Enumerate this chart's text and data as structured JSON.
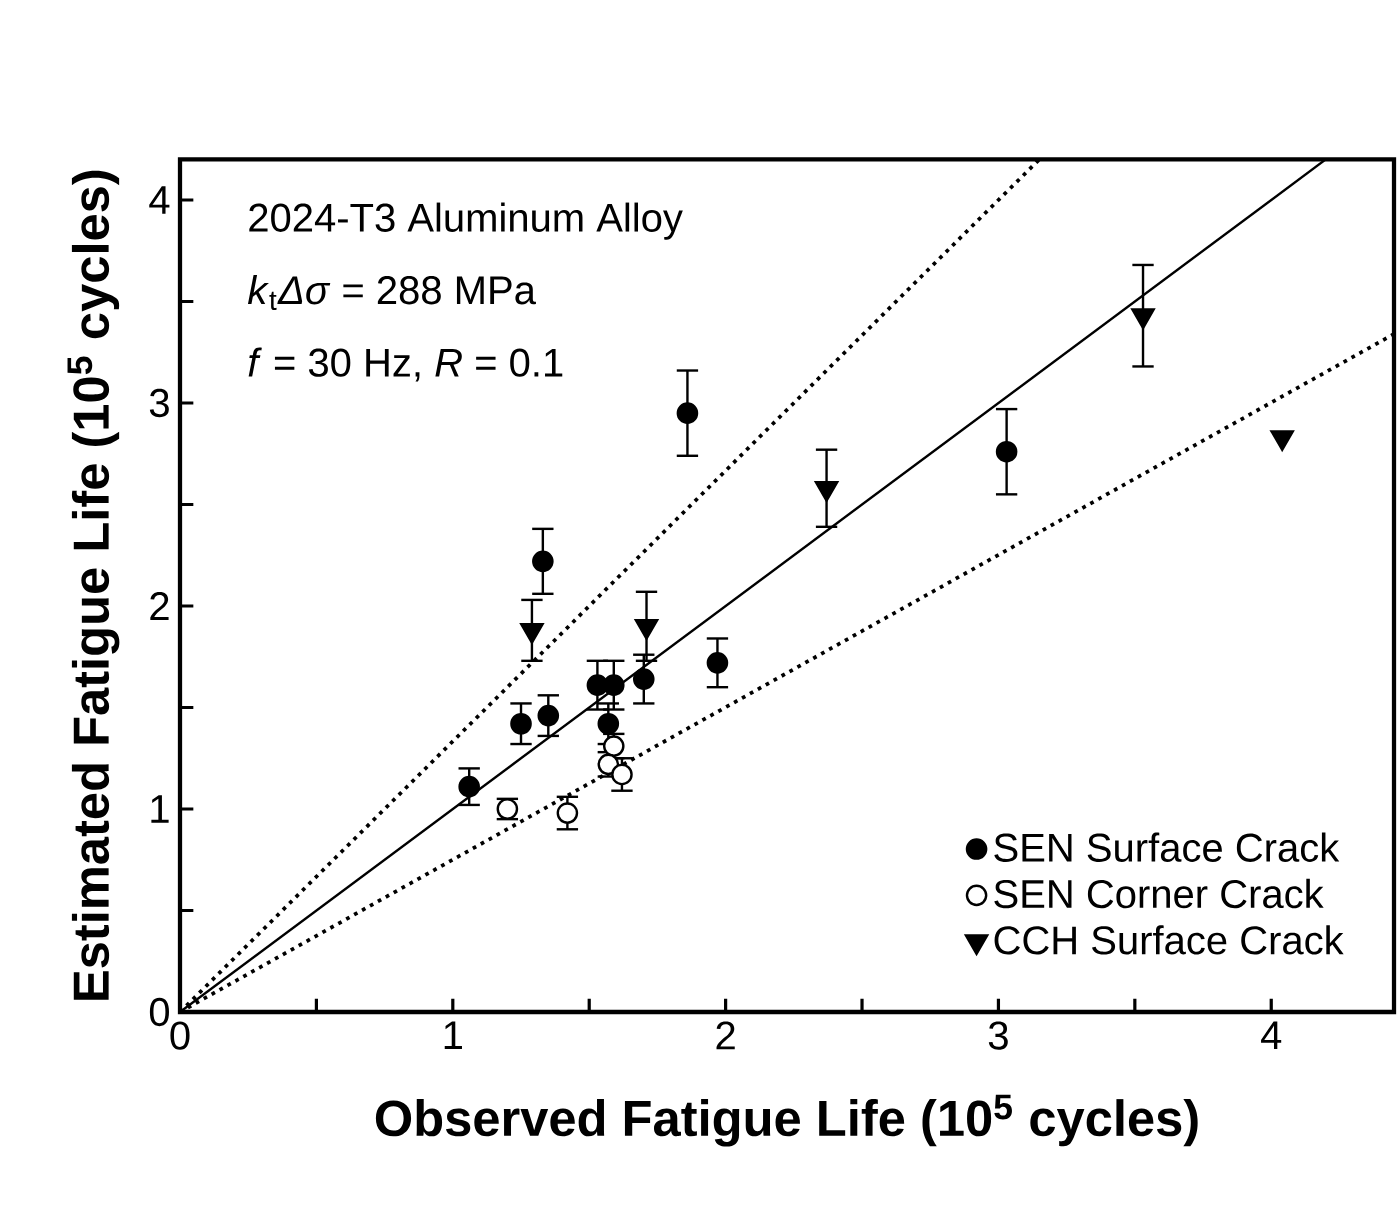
{
  "chart_data": {
    "type": "scatter",
    "xlabel": "Observed Fatigue Life (10$^{5}$ cycles)",
    "ylabel": "Estimated Fatigue Life (10$^{5}$ cycles)",
    "annotations": [
      "2024-T3 Aluminum Alloy",
      "*k*$_{t}$*Δσ* = 288 MPa",
      "*f* = 30 Hz, *R* = 0.1"
    ],
    "xlim": [
      0,
      4.45
    ],
    "ylim": [
      0,
      4.2
    ],
    "xticks": [
      0,
      {
        "value": 0.5,
        "label": null
      },
      1,
      {
        "value": 1.5,
        "label": null
      },
      2,
      {
        "value": 2.5,
        "label": null
      },
      3,
      {
        "value": 3.5,
        "label": null
      },
      4
    ],
    "yticks": [
      0,
      {
        "value": 0.5,
        "label": null
      },
      1,
      {
        "value": 1.5,
        "label": null
      },
      2,
      {
        "value": 2.5,
        "label": null
      },
      3,
      {
        "value": 3.5,
        "label": null
      },
      4
    ],
    "grid": false,
    "legend": "bottom right",
    "series": [
      {
        "name": "SEN Surface Crack",
        "color": "#000000",
        "marker": "circle",
        "x": [
          1.06,
          1.25,
          1.35,
          1.53,
          1.59,
          1.57,
          1.7,
          1.33,
          1.86,
          3.03,
          1.97
        ],
        "values": [
          1.11,
          1.42,
          1.46,
          1.61,
          1.61,
          1.42,
          1.64,
          2.22,
          2.95,
          2.76,
          1.72
        ],
        "errors": [
          0.09,
          0.1,
          0.1,
          0.12,
          0.12,
          0.1,
          0.12,
          0.16,
          0.21,
          0.21,
          0.12
        ]
      },
      {
        "name": "SEN Corner Crack",
        "color": "#ffffff",
        "marker": "circle",
        "x": [
          1.2,
          1.42,
          1.59,
          1.57,
          1.62
        ],
        "values": [
          1.0,
          0.98,
          1.31,
          1.22,
          1.17
        ],
        "errors": [
          0.05,
          0.08,
          0.06,
          0.06,
          0.08
        ]
      },
      {
        "name": "CCH Surface Crack",
        "color": "#000000",
        "marker": "triangle",
        "x": [
          1.29,
          1.71,
          2.37,
          3.53,
          4.04
        ],
        "values": [
          1.88,
          1.9,
          2.58,
          3.43,
          2.83
        ],
        "errors": [
          0.15,
          0.17,
          0.19,
          0.25,
          null
        ]
      },
      {
        "type": "line",
        "color": "#000000",
        "line_style": "solid",
        "marker": "none",
        "x": [
          0,
          4.2
        ],
        "values": [
          0,
          4.2
        ]
      },
      {
        "type": "line",
        "color": "#000000",
        "line_style": "dotted",
        "marker": "none",
        "x": [
          0,
          3.15
        ],
        "values": [
          0,
          4.2
        ]
      },
      {
        "type": "line",
        "color": "#000000",
        "line_style": "dotted",
        "marker": "none",
        "x": [
          0,
          4.45
        ],
        "values": [
          0,
          3.34
        ]
      }
    ]
  }
}
